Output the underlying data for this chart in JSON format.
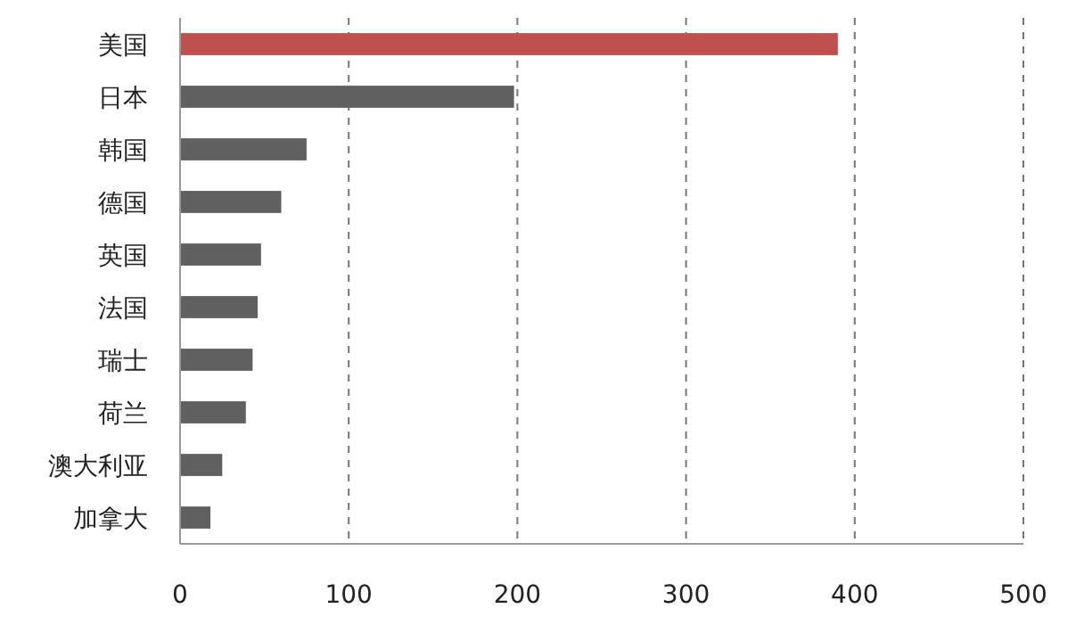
{
  "chart_data": {
    "type": "bar",
    "orientation": "horizontal",
    "categories": [
      "美国",
      "日本",
      "韩国",
      "德国",
      "英国",
      "法国",
      "瑞士",
      "荷兰",
      "澳大利亚",
      "加拿大"
    ],
    "values": [
      390,
      198,
      75,
      60,
      48,
      46,
      43,
      39,
      25,
      18
    ],
    "colors": [
      "#c0504d",
      "#606060",
      "#606060",
      "#606060",
      "#606060",
      "#606060",
      "#606060",
      "#606060",
      "#606060",
      "#606060"
    ],
    "xlim": [
      0,
      500
    ],
    "xticks": [
      0,
      100,
      200,
      300,
      400,
      500
    ],
    "grid": "x"
  }
}
